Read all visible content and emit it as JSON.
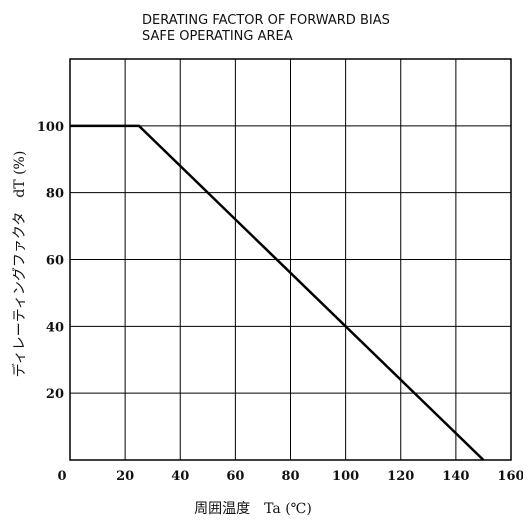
{
  "chart_data": {
    "type": "line",
    "title": [
      "DERATING FACTOR OF FORWARD BIAS",
      "SAFE OPERATING AREA"
    ],
    "xlabel": "周囲温度　Ta (℃)",
    "ylabel": "ディレーティングファクタ　dT (%)",
    "xlim": [
      0,
      160
    ],
    "ylim": [
      0,
      120
    ],
    "x_ticks": [
      0,
      20,
      40,
      60,
      80,
      100,
      120,
      140,
      160
    ],
    "x_tick_labels": [
      "0",
      "20",
      "40",
      "60",
      "80",
      "100",
      "120",
      "140",
      "160"
    ],
    "y_ticks": [
      20,
      40,
      60,
      80,
      100
    ],
    "y_tick_labels": [
      "20",
      "40",
      "60",
      "80",
      "100"
    ],
    "grid": true,
    "line_color": "#000000",
    "series": [
      {
        "x": [
          0,
          25,
          150
        ],
        "y": [
          100,
          100,
          0
        ]
      }
    ]
  }
}
